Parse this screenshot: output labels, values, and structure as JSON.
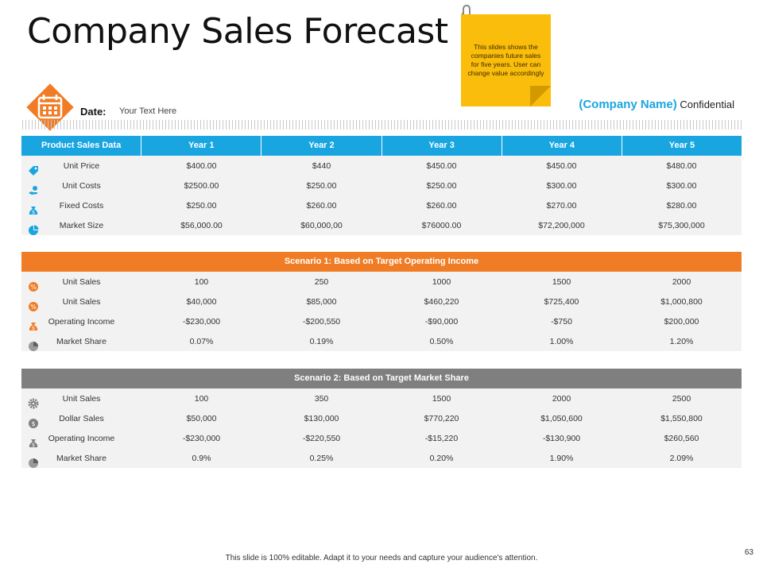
{
  "title": "Company Sales Forecast",
  "sticky_note": "This slides shows the companies future sales for five years. User can change value accordingly",
  "date_label": "Date:",
  "date_value": "Your Text Here",
  "company_name": "(Company Name)",
  "company_suffix": "Confidential",
  "colors": {
    "blue": "#18a5e0",
    "orange": "#f07d26",
    "grey": "#7f7f7f",
    "sticky": "#fbbd0b"
  },
  "table1": {
    "headers": [
      "Product Sales Data",
      "Year 1",
      "Year 2",
      "Year 3",
      "Year 4",
      "Year 5"
    ],
    "rows": [
      {
        "icon": "tag-icon",
        "label": "Unit Price",
        "values": [
          "$400.00",
          "$440",
          "$450.00",
          "$450.00",
          "$480.00"
        ]
      },
      {
        "icon": "hand-coin-icon",
        "label": "Unit Costs",
        "values": [
          "$2500.00",
          "$250.00",
          "$250.00",
          "$300.00",
          "$300.00"
        ]
      },
      {
        "icon": "money-bag-icon",
        "label": "Fixed Costs",
        "values": [
          "$250.00",
          "$260.00",
          "$260.00",
          "$270.00",
          "$280.00"
        ]
      },
      {
        "icon": "pie-chart-icon",
        "label": "Market Size",
        "values": [
          "$56,000.00",
          "$60,000,00",
          "$76000.00",
          "$72,200,000",
          "$75,300,000"
        ]
      }
    ]
  },
  "table2": {
    "title": "Scenario 1: Based on Target Operating Income",
    "rows": [
      {
        "icon": "percent-badge-icon",
        "label": "Unit Sales",
        "values": [
          "100",
          "250",
          "1000",
          "1500",
          "2000"
        ]
      },
      {
        "icon": "percent-badge-icon",
        "label": "Unit Sales",
        "values": [
          "$40,000",
          "$85,000",
          "$460,220",
          "$725,400",
          "$1,000,800"
        ]
      },
      {
        "icon": "money-bag-icon",
        "label": "Operating Income",
        "values": [
          "-$230,000",
          "-$200,550",
          "-$90,000",
          "-$750",
          "$200,000"
        ]
      },
      {
        "icon": "pie-chart-icon",
        "label": "Market Share",
        "values": [
          "0.07%",
          "0.19%",
          "0.50%",
          "1.00%",
          "1.20%"
        ]
      }
    ]
  },
  "table3": {
    "title": "Scenario 2: Based on Target Market Share",
    "rows": [
      {
        "icon": "gear-icon",
        "label": "Unit Sales",
        "values": [
          "100",
          "350",
          "1500",
          "2000",
          "2500"
        ]
      },
      {
        "icon": "dollar-coin-icon",
        "label": "Dollar Sales",
        "values": [
          "$50,000",
          "$130,000",
          "$770,220",
          "$1,050,600",
          "$1,550,800"
        ]
      },
      {
        "icon": "money-bag-icon",
        "label": "Operating Income",
        "values": [
          "-$230,000",
          "-$220,550",
          "-$15,220",
          "-$130,900",
          "$260,560"
        ]
      },
      {
        "icon": "pie-chart-icon",
        "label": "Market Share",
        "values": [
          "0.9%",
          "0.25%",
          "0.20%",
          "1.90%",
          "2.09%"
        ]
      }
    ]
  },
  "footer": "This slide is 100% editable. Adapt it to your needs and capture your audience's attention.",
  "page_number": "63"
}
